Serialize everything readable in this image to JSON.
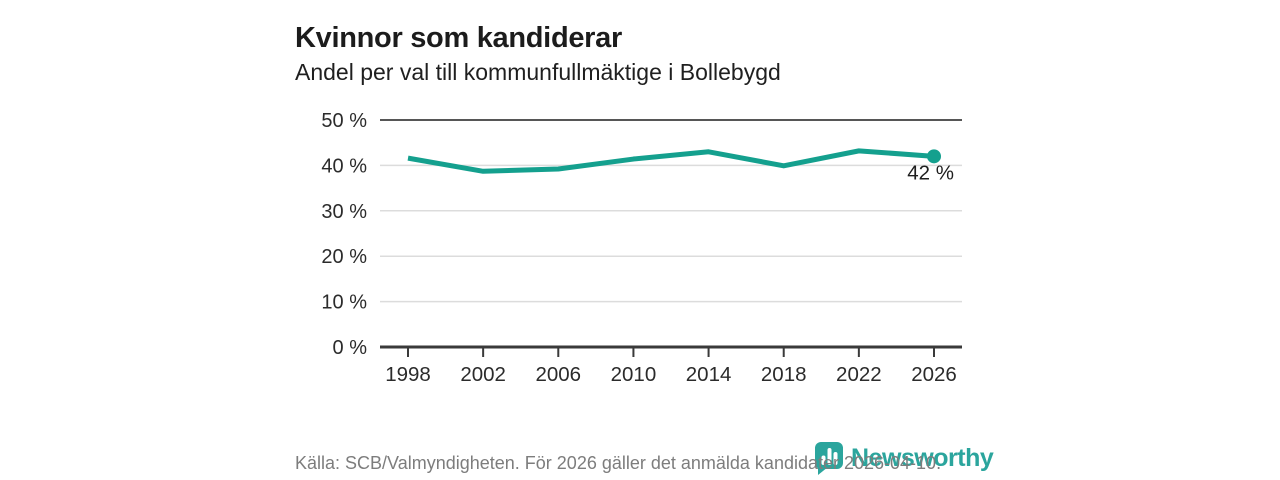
{
  "header": {
    "title": "Kvinnor som kandiderar",
    "subtitle": "Andel per val till kommunfullmäktige i Bollebygd"
  },
  "chart_data": {
    "type": "line",
    "title": "Kvinnor som kandiderar",
    "subtitle": "Andel per val till kommunfullmäktige i Bollebygd",
    "categories": [
      "1998",
      "2002",
      "2006",
      "2010",
      "2014",
      "2018",
      "2022",
      "2026"
    ],
    "values": [
      41.6,
      38.7,
      39.2,
      41.4,
      43.0,
      39.9,
      43.2,
      42.0
    ],
    "ylim": [
      0,
      50
    ],
    "yticks": [
      0,
      10,
      20,
      30,
      40,
      50
    ],
    "ytick_label_suffix": " %",
    "last_point_label": "42 %",
    "grid": "horizontal",
    "legend": "none",
    "colors": {
      "line": "#14a08e",
      "point": "#14a08e",
      "top_gridline": "#565656",
      "gridline": "#dcdcdc",
      "axis": "#3a3a3a",
      "tick_label": "#2b2b2b",
      "point_label": "#1e1e1e"
    }
  },
  "footer": {
    "source_text": "Källa: SCB/Valmyndigheten. För 2026 gäller det anmälda kandidater 2026-04-10.",
    "logo_text": "Newsworthy",
    "logo_color": "#2ba59d"
  }
}
